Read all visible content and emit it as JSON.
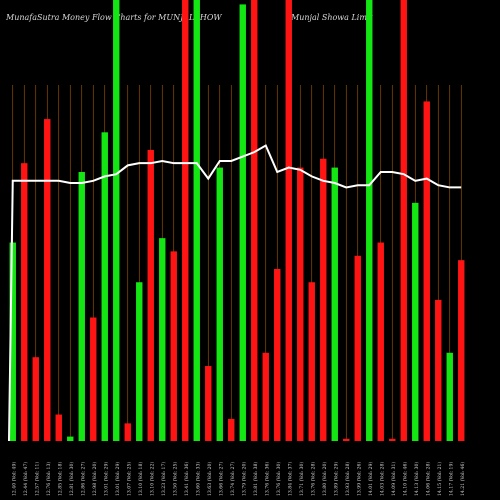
{
  "title_left": "MunafaSutra  Money Flow  Charts for MUNJALSHOW",
  "title_right": "Munjal Showa  Limit",
  "colors": {
    "up": "#14e614",
    "down": "#ff1414",
    "grid": "#a85a00",
    "line": "#ffffff",
    "background": "#000000",
    "label": "#dddddd"
  },
  "chart_data": {
    "type": "bar",
    "title": "MunafaSutra  Money Flow  Charts for MUNJALSHOW  Munjal Showa  Limit",
    "y_range": [
      0,
      100
    ],
    "bars": [
      {
        "dir": "up",
        "value": 45
      },
      {
        "dir": "down",
        "value": 63
      },
      {
        "dir": "down",
        "value": 19
      },
      {
        "dir": "down",
        "value": 73
      },
      {
        "dir": "down",
        "value": 6
      },
      {
        "dir": "up",
        "value": 1
      },
      {
        "dir": "up",
        "value": 61
      },
      {
        "dir": "down",
        "value": 28
      },
      {
        "dir": "up",
        "value": 70
      },
      {
        "dir": "up",
        "value": 100
      },
      {
        "dir": "down",
        "value": 4
      },
      {
        "dir": "up",
        "value": 36
      },
      {
        "dir": "down",
        "value": 66
      },
      {
        "dir": "up",
        "value": 46
      },
      {
        "dir": "down",
        "value": 43
      },
      {
        "dir": "down",
        "value": 100
      },
      {
        "dir": "up",
        "value": 100
      },
      {
        "dir": "down",
        "value": 17
      },
      {
        "dir": "up",
        "value": 62
      },
      {
        "dir": "down",
        "value": 5
      },
      {
        "dir": "up",
        "value": 99
      },
      {
        "dir": "down",
        "value": 100
      },
      {
        "dir": "down",
        "value": 20
      },
      {
        "dir": "down",
        "value": 39
      },
      {
        "dir": "down",
        "value": 100
      },
      {
        "dir": "down",
        "value": 62
      },
      {
        "dir": "down",
        "value": 36
      },
      {
        "dir": "down",
        "value": 64
      },
      {
        "dir": "up",
        "value": 62
      },
      {
        "dir": "down",
        "value": 0.5
      },
      {
        "dir": "down",
        "value": 42
      },
      {
        "dir": "up",
        "value": 100
      },
      {
        "dir": "down",
        "value": 45
      },
      {
        "dir": "down",
        "value": 0.5
      },
      {
        "dir": "down",
        "value": 100
      },
      {
        "dir": "up",
        "value": 54
      },
      {
        "dir": "down",
        "value": 77
      },
      {
        "dir": "down",
        "value": 32
      },
      {
        "dir": "up",
        "value": 20
      },
      {
        "dir": "down",
        "value": 41
      }
    ],
    "line": [
      59,
      59,
      59,
      59,
      59,
      58.5,
      58.5,
      59,
      60,
      60.5,
      62.5,
      63,
      63,
      63.5,
      63,
      63,
      63,
      59.5,
      63.5,
      63.5,
      64.5,
      65.5,
      67,
      61,
      62,
      61.5,
      60,
      59,
      58.5,
      57.5,
      58,
      58,
      61,
      61,
      60.5,
      59,
      59.5,
      58,
      57.5,
      57.5
    ],
    "x_labels": [
      "12.40 (Vol: 49)",
      "12.44 (Vol: 47)",
      "12.57 (Vol: 11)",
      "12.76 (Vol: 13)",
      "12.85 (Vol: 18)",
      "12.81 (Vol: 30)",
      "12.86 (Vol: 27)",
      "12.98 (Vol: 20)",
      "13.01 (Vol: 29)",
      "13.01 (Vol: 29)",
      "13.07 (Vol: 25)",
      "13.10 (Vol: 18)",
      "13.10 (Vol: 22)",
      "13.23 (Vol: 17)",
      "13.50 (Vol: 25)",
      "13.41 (Vol: 36)",
      "13.60 (Vol: 33)",
      "13.63 (Vol: 20)",
      "13.66 (Vol: 27)",
      "13.74 (Vol: 27)",
      "13.79 (Vol: 20)",
      "13.81 (Vol: 38)",
      "13.76 (Vol: 36)",
      "13.76 (Vol: 30)",
      "13.84 (Vol: 37)",
      "13.71 (Vol: 30)",
      "13.76 (Vol: 28)",
      "13.80 (Vol: 20)",
      "13.89 (Vol: 29)",
      "13.93 (Vol: 28)",
      "13.99 (Vol: 26)",
      "14.01 (Vol: 29)",
      "14.03 (Vol: 28)",
      "14.09 (Vol: 31)",
      "14.10 (Vol: 46)",
      "14.13 (Vol: 30)",
      "14.06 (Vol: 28)",
      "14.15 (Vol: 21)",
      "14.17 (Vol: 19)",
      "14.21 (Vol: 46)"
    ]
  }
}
